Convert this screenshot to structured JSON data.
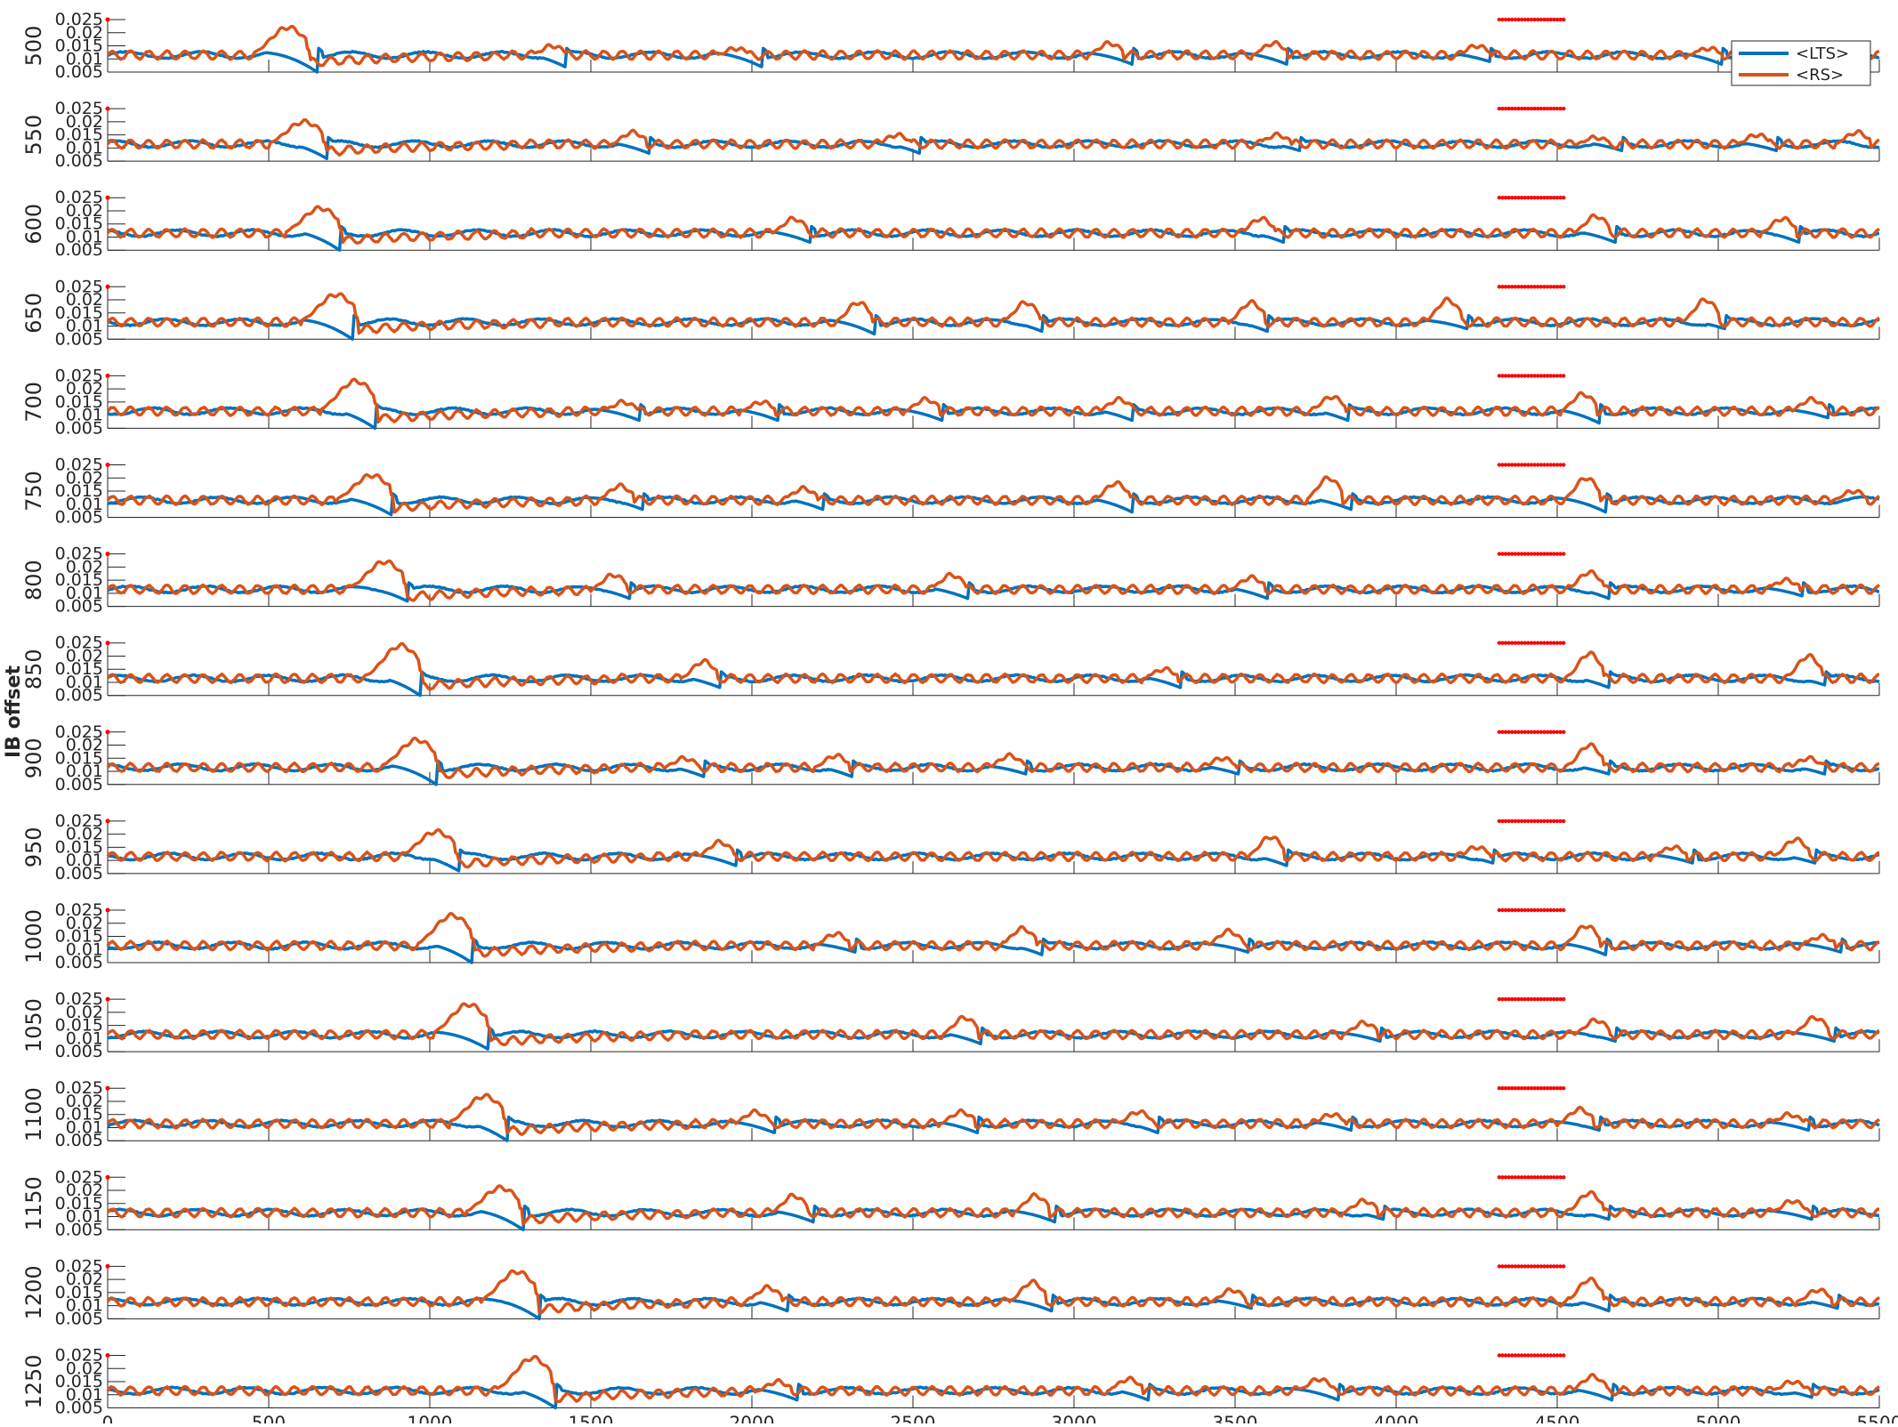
{
  "chart_data": {
    "type": "line",
    "ylabel": "IB offset",
    "xlabel": "",
    "xlim": [
      0,
      5500
    ],
    "x_ticks": [
      "0",
      "500",
      "1000",
      "1500",
      "2000",
      "2500",
      "3000",
      "3500",
      "4000",
      "4500",
      "5000",
      "5500"
    ],
    "y_ticks": [
      "0.005",
      "0.01",
      "0.015",
      "0.02",
      "0.025"
    ],
    "ylim": [
      0.005,
      0.025
    ],
    "legend": {
      "location": "top-right",
      "entries": [
        "<LTS>",
        "<RS>"
      ]
    },
    "series_colors": {
      "<LTS>": "#0072BD",
      "<RS>": "#D95319"
    },
    "stimulus_marker": {
      "x_start": 4320,
      "x_end": 4520,
      "y": 0.025,
      "color": "#ff0000"
    },
    "panels": [
      {
        "label": "500",
        "rs_peaks": [
          [
            560,
            0.022
          ],
          [
            1380,
            0.015
          ],
          [
            1950,
            0.014
          ],
          [
            3110,
            0.016
          ],
          [
            3620,
            0.016
          ],
          [
            4250,
            0.015
          ],
          [
            4970,
            0.014
          ],
          [
            5320,
            0.015
          ]
        ],
        "lts_drops": [
          [
            650,
            0.005
          ],
          [
            1420,
            0.007
          ],
          [
            2030,
            0.007
          ],
          [
            3180,
            0.008
          ],
          [
            3660,
            0.008
          ],
          [
            4290,
            0.009
          ],
          [
            5010,
            0.008
          ],
          [
            5400,
            0.009
          ]
        ]
      },
      {
        "label": "550",
        "rs_peaks": [
          [
            610,
            0.02
          ],
          [
            1630,
            0.016
          ],
          [
            2450,
            0.015
          ],
          [
            3630,
            0.015
          ],
          [
            4620,
            0.014
          ],
          [
            5120,
            0.015
          ],
          [
            5430,
            0.016
          ]
        ],
        "lts_drops": [
          [
            680,
            0.006
          ],
          [
            1680,
            0.008
          ],
          [
            2520,
            0.008
          ],
          [
            3700,
            0.009
          ],
          [
            4700,
            0.009
          ],
          [
            5180,
            0.009
          ]
        ]
      },
      {
        "label": "600",
        "rs_peaks": [
          [
            660,
            0.021
          ],
          [
            2130,
            0.017
          ],
          [
            3580,
            0.017
          ],
          [
            4620,
            0.018
          ],
          [
            5200,
            0.017
          ]
        ],
        "lts_drops": [
          [
            720,
            0.005
          ],
          [
            2180,
            0.008
          ],
          [
            3650,
            0.008
          ],
          [
            4680,
            0.008
          ],
          [
            5250,
            0.008
          ]
        ]
      },
      {
        "label": "650",
        "rs_peaks": [
          [
            710,
            0.022
          ],
          [
            2330,
            0.019
          ],
          [
            2850,
            0.019
          ],
          [
            3550,
            0.019
          ],
          [
            4160,
            0.02
          ],
          [
            4960,
            0.02
          ]
        ],
        "lts_drops": [
          [
            760,
            0.005
          ],
          [
            2380,
            0.007
          ],
          [
            2900,
            0.008
          ],
          [
            3600,
            0.008
          ],
          [
            4220,
            0.009
          ],
          [
            5020,
            0.009
          ]
        ]
      },
      {
        "label": "700",
        "rs_peaks": [
          [
            770,
            0.023
          ],
          [
            1600,
            0.015
          ],
          [
            2030,
            0.015
          ],
          [
            2540,
            0.016
          ],
          [
            3140,
            0.016
          ],
          [
            3800,
            0.017
          ],
          [
            4580,
            0.018
          ],
          [
            5290,
            0.016
          ]
        ],
        "lts_drops": [
          [
            830,
            0.005
          ],
          [
            1650,
            0.008
          ],
          [
            2080,
            0.008
          ],
          [
            2590,
            0.008
          ],
          [
            3180,
            0.008
          ],
          [
            3850,
            0.008
          ],
          [
            4630,
            0.007
          ],
          [
            5340,
            0.009
          ]
        ]
      },
      {
        "label": "750",
        "rs_peaks": [
          [
            820,
            0.021
          ],
          [
            1590,
            0.017
          ],
          [
            2160,
            0.016
          ],
          [
            3130,
            0.018
          ],
          [
            3790,
            0.02
          ],
          [
            4590,
            0.02
          ],
          [
            5420,
            0.015
          ]
        ],
        "lts_drops": [
          [
            880,
            0.006
          ],
          [
            1660,
            0.008
          ],
          [
            2220,
            0.008
          ],
          [
            3180,
            0.007
          ],
          [
            3860,
            0.008
          ],
          [
            4650,
            0.007
          ]
        ]
      },
      {
        "label": "800",
        "rs_peaks": [
          [
            860,
            0.022
          ],
          [
            1570,
            0.017
          ],
          [
            2620,
            0.017
          ],
          [
            3550,
            0.016
          ],
          [
            4600,
            0.018
          ],
          [
            5210,
            0.015
          ]
        ],
        "lts_drops": [
          [
            930,
            0.007
          ],
          [
            1620,
            0.008
          ],
          [
            2670,
            0.008
          ],
          [
            3600,
            0.008
          ],
          [
            4660,
            0.008
          ],
          [
            5260,
            0.009
          ]
        ]
      },
      {
        "label": "850",
        "rs_peaks": [
          [
            910,
            0.024
          ],
          [
            1850,
            0.018
          ],
          [
            3280,
            0.015
          ],
          [
            4600,
            0.021
          ],
          [
            5280,
            0.02
          ]
        ],
        "lts_drops": [
          [
            970,
            0.005
          ],
          [
            1900,
            0.008
          ],
          [
            3330,
            0.008
          ],
          [
            4660,
            0.008
          ],
          [
            5330,
            0.009
          ]
        ]
      },
      {
        "label": "900",
        "rs_peaks": [
          [
            960,
            0.022
          ],
          [
            1790,
            0.015
          ],
          [
            2260,
            0.016
          ],
          [
            2800,
            0.016
          ],
          [
            3460,
            0.015
          ],
          [
            4600,
            0.02
          ],
          [
            5280,
            0.015
          ]
        ],
        "lts_drops": [
          [
            1020,
            0.005
          ],
          [
            1850,
            0.008
          ],
          [
            2310,
            0.008
          ],
          [
            2850,
            0.009
          ],
          [
            3510,
            0.009
          ],
          [
            4660,
            0.009
          ],
          [
            5330,
            0.009
          ]
        ]
      },
      {
        "label": "950",
        "rs_peaks": [
          [
            1020,
            0.021
          ],
          [
            1900,
            0.017
          ],
          [
            3610,
            0.019
          ],
          [
            4250,
            0.015
          ],
          [
            4860,
            0.015
          ],
          [
            5240,
            0.018
          ]
        ],
        "lts_drops": [
          [
            1090,
            0.006
          ],
          [
            1950,
            0.008
          ],
          [
            3660,
            0.008
          ],
          [
            4300,
            0.009
          ],
          [
            4920,
            0.009
          ],
          [
            5300,
            0.009
          ]
        ]
      },
      {
        "label": "1000",
        "rs_peaks": [
          [
            1070,
            0.023
          ],
          [
            2260,
            0.016
          ],
          [
            2840,
            0.018
          ],
          [
            3480,
            0.017
          ],
          [
            4590,
            0.019
          ],
          [
            5320,
            0.015
          ]
        ],
        "lts_drops": [
          [
            1130,
            0.005
          ],
          [
            2320,
            0.009
          ],
          [
            2900,
            0.008
          ],
          [
            3540,
            0.009
          ],
          [
            4650,
            0.008
          ],
          [
            5380,
            0.009
          ]
        ]
      },
      {
        "label": "1050",
        "rs_peaks": [
          [
            1120,
            0.023
          ],
          [
            2660,
            0.018
          ],
          [
            3900,
            0.016
          ],
          [
            4620,
            0.017
          ],
          [
            5300,
            0.018
          ]
        ],
        "lts_drops": [
          [
            1180,
            0.006
          ],
          [
            2710,
            0.008
          ],
          [
            3950,
            0.009
          ],
          [
            4680,
            0.009
          ],
          [
            5360,
            0.009
          ]
        ]
      },
      {
        "label": "1100",
        "rs_peaks": [
          [
            1170,
            0.022
          ],
          [
            2010,
            0.016
          ],
          [
            2650,
            0.016
          ],
          [
            3200,
            0.016
          ],
          [
            3800,
            0.015
          ],
          [
            4570,
            0.017
          ],
          [
            5220,
            0.015
          ]
        ],
        "lts_drops": [
          [
            1240,
            0.005
          ],
          [
            2070,
            0.008
          ],
          [
            2700,
            0.008
          ],
          [
            3260,
            0.008
          ],
          [
            3860,
            0.009
          ],
          [
            4630,
            0.009
          ],
          [
            5280,
            0.009
          ]
        ]
      },
      {
        "label": "1150",
        "rs_peaks": [
          [
            1220,
            0.021
          ],
          [
            2130,
            0.018
          ],
          [
            2880,
            0.018
          ],
          [
            3900,
            0.016
          ],
          [
            4600,
            0.019
          ],
          [
            5230,
            0.016
          ]
        ],
        "lts_drops": [
          [
            1290,
            0.005
          ],
          [
            2190,
            0.008
          ],
          [
            2940,
            0.008
          ],
          [
            3960,
            0.009
          ],
          [
            4660,
            0.009
          ],
          [
            5290,
            0.009
          ]
        ]
      },
      {
        "label": "1200",
        "rs_peaks": [
          [
            1270,
            0.023
          ],
          [
            2050,
            0.017
          ],
          [
            2870,
            0.019
          ],
          [
            3490,
            0.016
          ],
          [
            4600,
            0.02
          ],
          [
            5310,
            0.016
          ]
        ],
        "lts_drops": [
          [
            1340,
            0.005
          ],
          [
            2110,
            0.008
          ],
          [
            2930,
            0.008
          ],
          [
            3550,
            0.009
          ],
          [
            4660,
            0.008
          ],
          [
            5370,
            0.009
          ]
        ]
      },
      {
        "label": "1250",
        "rs_peaks": [
          [
            1320,
            0.024
          ],
          [
            2080,
            0.015
          ],
          [
            3170,
            0.016
          ],
          [
            3760,
            0.016
          ],
          [
            4610,
            0.017
          ],
          [
            5230,
            0.015
          ]
        ],
        "lts_drops": [
          [
            1390,
            0.005
          ],
          [
            2140,
            0.008
          ],
          [
            3230,
            0.008
          ],
          [
            3820,
            0.008
          ],
          [
            4670,
            0.008
          ],
          [
            5290,
            0.009
          ]
        ]
      }
    ]
  }
}
